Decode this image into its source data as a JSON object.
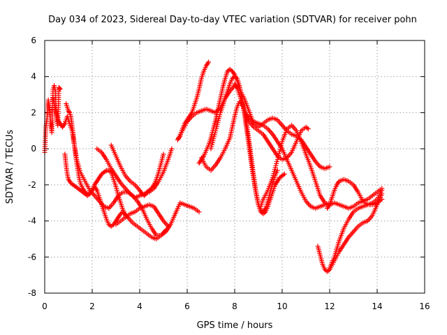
{
  "chart_data": {
    "type": "scatter",
    "title": "Day 034 of 2023, Sidereal Day-to-day VTEC variation (SDTVAR) for receiver pohn",
    "xlabel": "GPS time / hours",
    "ylabel": "SDTVAR / TECUs",
    "xlim": [
      0,
      16
    ],
    "ylim": [
      -8,
      6
    ],
    "xticks": [
      "0",
      "2",
      "4",
      "6",
      "8",
      "10",
      "12",
      "14",
      "16"
    ],
    "yticks": [
      "-8",
      "-6",
      "-4",
      "-2",
      "0",
      "2",
      "4",
      "6"
    ],
    "grid": true,
    "marker": "+",
    "color": "#ff0000",
    "series": [
      {
        "x": [
          0.0,
          0.05,
          0.1,
          0.15,
          0.2,
          0.25,
          0.3,
          0.35,
          0.4,
          0.45,
          0.5,
          0.55,
          0.6,
          0.65
        ],
        "y": [
          -0.2,
          1.2,
          1.7,
          2.7,
          2.2,
          1.5,
          0.9,
          3.3,
          3.5,
          3.2,
          1.6,
          1.3,
          3.4,
          3.3
        ]
      },
      {
        "x": [
          0.35,
          0.45,
          0.55,
          0.65,
          0.75,
          0.85,
          0.95,
          1.05,
          1.15,
          1.25,
          1.35,
          1.5,
          1.7,
          1.9,
          2.1,
          2.3,
          2.5,
          2.7,
          2.9,
          3.1,
          3.3,
          3.5,
          3.7,
          3.9,
          4.1,
          4.3,
          4.5,
          4.7,
          4.9,
          5.1,
          5.3,
          5.5
        ],
        "y": [
          2.8,
          2.2,
          1.6,
          1.4,
          1.2,
          1.4,
          1.8,
          1.4,
          1.0,
          0.2,
          -0.6,
          -1.3,
          -1.8,
          -2.3,
          -2.6,
          -2.9,
          -3.2,
          -3.3,
          -3.0,
          -2.6,
          -2.4,
          -2.4,
          -2.6,
          -2.9,
          -3.3,
          -3.9,
          -4.4,
          -4.8,
          -4.8,
          -4.6,
          -4.2,
          -3.6
        ]
      },
      {
        "x": [
          0.9,
          0.95,
          1.0,
          1.05,
          1.1,
          1.15,
          1.2,
          1.25,
          1.3,
          1.35,
          1.4,
          1.45,
          1.5,
          1.6,
          1.7,
          1.8,
          1.9,
          2.0,
          2.1,
          2.2,
          2.3,
          2.4,
          2.5,
          2.6,
          2.7,
          2.8,
          2.9,
          3.0,
          3.1,
          3.2,
          3.3,
          3.5,
          3.7,
          3.9,
          4.1,
          4.3,
          4.5,
          4.7,
          4.9,
          5.1
        ],
        "y": [
          2.5,
          2.3,
          2.1,
          2.0,
          1.8,
          1.3,
          0.8,
          0.2,
          -0.3,
          -0.8,
          -1.2,
          -1.6,
          -1.9,
          -2.2,
          -2.4,
          -2.5,
          -2.5,
          -2.3,
          -2.1,
          -2.3,
          -2.7,
          -3.1,
          -3.5,
          -3.9,
          -4.2,
          -4.3,
          -4.2,
          -4.0,
          -3.8,
          -3.6,
          -3.5,
          -3.8,
          -4.1,
          -4.3,
          -4.5,
          -4.7,
          -4.9,
          -5.0,
          -4.8,
          -4.5
        ]
      },
      {
        "x": [
          0.85,
          0.9,
          0.95,
          1.0,
          1.1,
          1.2,
          1.3,
          1.4,
          1.5,
          1.6,
          1.7,
          1.8,
          1.9,
          2.0,
          2.1,
          2.2,
          2.3,
          2.4,
          2.5,
          2.6,
          2.7,
          2.8,
          2.9,
          3.0,
          3.1,
          3.2,
          3.3,
          3.4
        ],
        "y": [
          -0.3,
          -0.9,
          -1.4,
          -1.7,
          -1.9,
          -2.0,
          -2.1,
          -2.2,
          -2.3,
          -2.4,
          -2.5,
          -2.6,
          -2.5,
          -2.3,
          -2.0,
          -1.8,
          -1.6,
          -1.4,
          -1.3,
          -1.2,
          -1.2,
          -1.3,
          -1.7,
          -2.1,
          -2.6,
          -3.0,
          -3.4,
          -3.7
        ]
      },
      {
        "x": [
          2.2,
          2.4,
          2.6,
          2.8,
          3.0,
          3.2,
          3.4,
          3.6,
          3.8,
          4.0,
          4.2,
          4.4,
          4.6,
          4.8,
          5.0,
          5.2,
          5.35
        ],
        "y": [
          0.0,
          -0.2,
          -0.6,
          -1.1,
          -1.5,
          -1.9,
          -2.2,
          -2.5,
          -2.7,
          -2.6,
          -2.5,
          -2.4,
          -2.2,
          -1.8,
          -1.3,
          -0.6,
          0.0
        ]
      },
      {
        "x": [
          2.8,
          3.0,
          3.2,
          3.4,
          3.6,
          3.8,
          4.0,
          4.1,
          4.2,
          4.3,
          4.4,
          4.5,
          4.6,
          4.7,
          4.8,
          4.9,
          5.0
        ],
        "y": [
          0.2,
          -0.4,
          -1.0,
          -1.5,
          -1.8,
          -2.0,
          -2.3,
          -2.5,
          -2.6,
          -2.4,
          -2.3,
          -2.2,
          -2.0,
          -1.7,
          -1.3,
          -0.8,
          -0.3
        ]
      },
      {
        "x": [
          3.0,
          3.2,
          3.4,
          3.6,
          3.8,
          4.0,
          4.2,
          4.4,
          4.6,
          4.8,
          5.0,
          5.2
        ],
        "y": [
          -4.2,
          -4.0,
          -3.8,
          -3.6,
          -3.5,
          -3.3,
          -3.2,
          -3.1,
          -3.2,
          -3.6,
          -4.0,
          -4.3
        ]
      },
      {
        "x": [
          5.5,
          5.7,
          5.9,
          6.1,
          6.3,
          6.5
        ],
        "y": [
          -3.6,
          -3.0,
          -3.1,
          -3.2,
          -3.3,
          -3.5
        ]
      },
      {
        "x": [
          5.6,
          5.7,
          5.8,
          5.9,
          6.0,
          6.1,
          6.2,
          6.3,
          6.4,
          6.5,
          6.6,
          6.7,
          6.8,
          6.9
        ],
        "y": [
          0.5,
          0.7,
          1.1,
          1.4,
          1.6,
          1.8,
          2.0,
          2.4,
          2.8,
          3.3,
          3.9,
          4.3,
          4.6,
          4.8
        ]
      },
      {
        "x": [
          5.6,
          5.8,
          6.0,
          6.2,
          6.4,
          6.6,
          6.8,
          7.0,
          7.2,
          7.4,
          7.6,
          7.7,
          7.8,
          7.9,
          8.0,
          8.1,
          8.2,
          8.3,
          8.4,
          8.5,
          8.6,
          8.7,
          8.8,
          8.9,
          9.0,
          9.1,
          9.2,
          9.3,
          9.4,
          9.5,
          9.6,
          9.7,
          9.8,
          9.9,
          10.0,
          10.1
        ],
        "y": [
          0.5,
          1.0,
          1.5,
          1.8,
          2.0,
          2.1,
          2.2,
          2.1,
          2.0,
          2.3,
          2.8,
          3.2,
          3.6,
          3.9,
          4.0,
          3.9,
          3.5,
          2.8,
          2.0,
          1.1,
          0.2,
          -0.8,
          -1.7,
          -2.5,
          -3.1,
          -3.5,
          -3.6,
          -3.5,
          -3.2,
          -2.8,
          -2.4,
          -2.0,
          -1.8,
          -1.6,
          -1.5,
          -1.4
        ]
      },
      {
        "x": [
          6.5,
          6.6,
          6.7,
          6.8,
          6.9,
          7.0,
          7.1,
          7.2,
          7.3,
          7.4,
          7.5,
          7.6,
          7.7,
          7.8,
          7.9,
          8.0,
          8.1,
          8.2,
          8.3,
          8.4,
          8.5,
          8.6,
          8.7,
          8.8,
          8.9,
          9.0,
          9.1,
          9.2,
          9.3,
          9.4,
          9.5,
          9.6,
          9.7,
          9.8
        ],
        "y": [
          -0.8,
          -0.6,
          -0.4,
          -0.1,
          0.2,
          0.6,
          1.1,
          1.6,
          2.2,
          2.8,
          3.4,
          3.9,
          4.3,
          4.4,
          4.3,
          4.1,
          3.8,
          3.4,
          2.9,
          2.2,
          1.4,
          0.5,
          -0.5,
          -1.5,
          -2.4,
          -3.1,
          -3.4,
          -3.5,
          -3.3,
          -2.9,
          -2.4,
          -1.9,
          -1.5,
          -1.2
        ]
      },
      {
        "x": [
          6.6,
          6.8,
          7.0,
          7.2,
          7.4,
          7.6,
          7.8,
          7.9,
          8.0,
          8.1,
          8.2,
          8.3,
          8.4,
          8.5,
          8.6,
          8.8,
          9.0,
          9.2,
          9.4,
          9.6,
          9.8,
          10.0,
          10.2,
          10.4,
          10.6,
          10.8,
          11.0,
          11.2,
          11.4,
          11.6,
          11.8,
          12.0
        ],
        "y": [
          -0.5,
          -1.0,
          -1.2,
          -0.9,
          -0.5,
          0.0,
          0.6,
          1.2,
          1.8,
          2.3,
          2.6,
          2.5,
          2.2,
          1.9,
          1.7,
          1.5,
          1.4,
          1.3,
          1.1,
          0.8,
          0.4,
          0.0,
          -0.6,
          -1.2,
          -1.8,
          -2.4,
          -2.9,
          -3.2,
          -3.3,
          -3.2,
          -3.1,
          -3.1
        ]
      },
      {
        "x": [
          7.0,
          7.2,
          7.4,
          7.6,
          7.8,
          8.0,
          8.2,
          8.4,
          8.6,
          8.8,
          9.0,
          9.2,
          9.4,
          9.6,
          9.8,
          10.0,
          10.2,
          10.4,
          10.6,
          10.8,
          11.0,
          11.2,
          11.4,
          11.6,
          11.8,
          12.0
        ],
        "y": [
          0.0,
          1.0,
          2.0,
          2.8,
          3.2,
          3.5,
          3.3,
          2.8,
          2.1,
          1.4,
          1.2,
          1.4,
          1.6,
          1.7,
          1.6,
          1.3,
          1.0,
          0.8,
          0.7,
          0.5,
          0.1,
          -0.3,
          -0.7,
          -1.0,
          -1.1,
          -1.0
        ]
      },
      {
        "x": [
          8.0,
          8.1,
          8.2,
          8.3,
          8.4,
          8.5,
          8.6,
          8.8,
          9.0,
          9.2,
          9.4,
          9.6,
          9.8,
          10.0,
          10.2,
          10.4,
          10.6,
          10.8,
          11.0,
          11.1
        ],
        "y": [
          3.6,
          3.4,
          3.0,
          2.6,
          2.2,
          1.8,
          1.5,
          1.2,
          1.0,
          0.8,
          0.4,
          0.0,
          -0.4,
          -0.6,
          -0.5,
          -0.2,
          0.4,
          1.0,
          1.2,
          1.1
        ]
      },
      {
        "x": [
          9.1,
          9.2,
          9.4,
          9.6,
          9.8,
          10.0,
          10.2,
          10.4,
          10.6,
          10.8,
          11.0,
          11.2,
          11.4,
          11.6,
          11.8,
          12.0,
          12.2,
          12.4,
          12.6,
          12.8,
          13.0,
          13.2,
          13.4,
          13.6,
          13.8,
          14.0,
          14.2
        ],
        "y": [
          -3.2,
          -2.8,
          -2.3,
          -1.6,
          -0.6,
          0.4,
          1.1,
          1.3,
          1.0,
          0.4,
          -0.3,
          -1.0,
          -1.8,
          -2.6,
          -3.0,
          -3.1,
          -3.0,
          -3.1,
          -3.2,
          -3.3,
          -3.2,
          -3.0,
          -2.9,
          -2.8,
          -2.6,
          -2.4,
          -2.2
        ]
      },
      {
        "x": [
          11.5,
          11.6,
          11.7,
          11.8,
          11.9,
          12.0,
          12.2,
          12.4,
          12.6,
          12.8,
          13.0,
          13.2,
          13.4,
          13.6,
          13.8,
          14.0,
          14.2
        ],
        "y": [
          -5.4,
          -5.9,
          -6.4,
          -6.7,
          -6.8,
          -6.7,
          -6.2,
          -5.7,
          -5.3,
          -4.9,
          -4.6,
          -4.3,
          -4.1,
          -4.0,
          -3.7,
          -3.1,
          -2.5
        ]
      },
      {
        "x": [
          12.0,
          12.2,
          12.4,
          12.6,
          12.8,
          13.0,
          13.2,
          13.4,
          13.6,
          13.8,
          14.0,
          14.2
        ],
        "y": [
          -6.6,
          -6.0,
          -5.1,
          -4.4,
          -3.9,
          -3.5,
          -3.3,
          -3.2,
          -3.1,
          -3.0,
          -2.8,
          -2.3
        ]
      },
      {
        "x": [
          11.9,
          12.0,
          12.1,
          12.2,
          12.3,
          12.4,
          12.6,
          12.8,
          13.0,
          13.2,
          13.4,
          13.6,
          13.8,
          14.0,
          14.2
        ],
        "y": [
          -3.3,
          -3.1,
          -2.7,
          -2.3,
          -2.0,
          -1.8,
          -1.7,
          -1.8,
          -2.0,
          -2.4,
          -2.9,
          -3.1,
          -3.1,
          -3.0,
          -2.8
        ]
      }
    ]
  }
}
